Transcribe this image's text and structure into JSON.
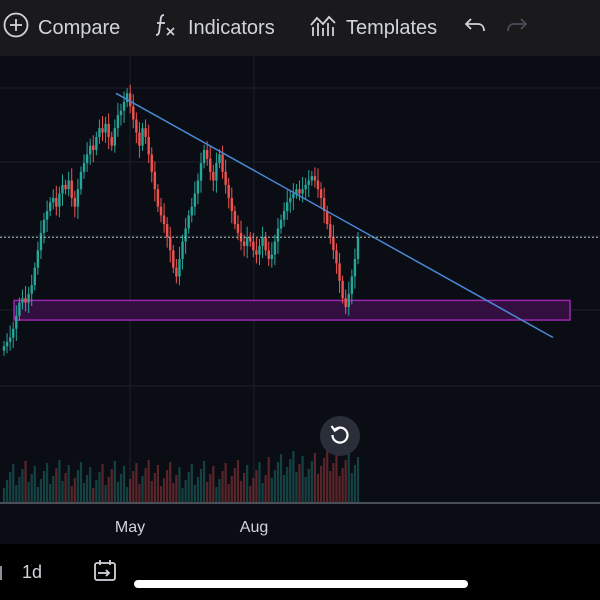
{
  "toolbar": {
    "compare_label": "Compare",
    "indicators_label": "Indicators",
    "templates_label": "Templates",
    "icons": [
      "plus-circle-icon",
      "fx-icon",
      "templates-icon",
      "undo-icon",
      "redo-icon"
    ]
  },
  "chart_data": {
    "type": "candlestick",
    "x_tick_labels": [
      "May",
      "Aug"
    ],
    "y_range": [
      0,
      100
    ],
    "grid": true,
    "current_price_line": 55.0,
    "trendline": {
      "start": {
        "x": 116,
        "y": 88
      },
      "end": {
        "x": 553,
        "y": 32
      }
    },
    "support_zone": {
      "x_start": 14,
      "x_end": 570,
      "y_low": 36,
      "y_high": 40.5
    },
    "colors": {
      "up": "#26a69a",
      "down": "#ef5350",
      "trendline": "#4a88d8",
      "zone_border": "#9c27b0",
      "zone_fill": "#3b1146",
      "grid": "#1c2030",
      "price_line": "#b0c4b0"
    },
    "candles_close": [
      30,
      31,
      32,
      34,
      37,
      40,
      41,
      40,
      42,
      44,
      48,
      52,
      56,
      59,
      61,
      63,
      64,
      62,
      65,
      67,
      66,
      68,
      64,
      62,
      66,
      70,
      72,
      74,
      76,
      75,
      78,
      80,
      79,
      81,
      78,
      76,
      80,
      83,
      84,
      86,
      88,
      85,
      82,
      79,
      76,
      80,
      78,
      74,
      70,
      66,
      62,
      60,
      58,
      55,
      52,
      48,
      46,
      50,
      54,
      57,
      60,
      62,
      65,
      68,
      72,
      75,
      73,
      70,
      68,
      72,
      74,
      70,
      67,
      64,
      61,
      58,
      56,
      54,
      53,
      55,
      54,
      52,
      51,
      53,
      55,
      52,
      50,
      51,
      54,
      57,
      59,
      61,
      63,
      64,
      65,
      66,
      65,
      66,
      67,
      68,
      69,
      68,
      66,
      64,
      61,
      58,
      55,
      52,
      49,
      45,
      41,
      39,
      42,
      46,
      50,
      55
    ]
  }
}
